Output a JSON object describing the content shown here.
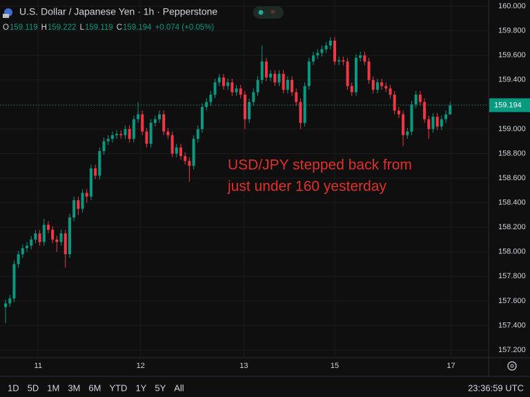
{
  "chart_data": {
    "type": "candlestick",
    "title": "U.S. Dollar / Japanese Yen · 1h · Pepperstone",
    "ohlc_labels": [
      "O",
      "H",
      "L",
      "C"
    ],
    "change_label": "+0.074 (+0.05%)",
    "annotation": [
      "USD/JPY stepped back from",
      "just under 160 yesterday"
    ],
    "ranges": [
      "1D",
      "5D",
      "1M",
      "3M",
      "6M",
      "YTD",
      "1Y",
      "5Y",
      "All"
    ],
    "clock": "23:36:59 UTC",
    "up_color": "#089981",
    "down_color": "#f23645",
    "last_price_line": true,
    "xlim": [
      -1.3,
      113
    ],
    "xticks": [
      {
        "value": 7.62,
        "label": "11"
      },
      {
        "value": 31.6,
        "label": "12"
      },
      {
        "value": 55.75,
        "label": "13"
      },
      {
        "value": 77.0,
        "label": "15"
      },
      {
        "value": 104.2,
        "label": "17"
      }
    ],
    "ylim": [
      157.138,
      160.051
    ],
    "yticks": [
      {
        "value": 157.2,
        "label": "157.200"
      },
      {
        "value": 157.4,
        "label": "157.400"
      },
      {
        "value": 157.6,
        "label": "157.600"
      },
      {
        "value": 157.8,
        "label": "157.800"
      },
      {
        "value": 158.0,
        "label": "158.000"
      },
      {
        "value": 158.2,
        "label": "158.200"
      },
      {
        "value": 158.4,
        "label": "158.400"
      },
      {
        "value": 158.6,
        "label": "158.600"
      },
      {
        "value": 158.8,
        "label": "158.800"
      },
      {
        "value": 159.0,
        "label": "159.000"
      },
      {
        "value": 159.2,
        "label": "159.200"
      },
      {
        "value": 159.4,
        "label": "159.400"
      },
      {
        "value": 159.6,
        "label": "159.600"
      },
      {
        "value": 159.8,
        "label": "159.800"
      },
      {
        "value": 160.0,
        "label": "160.000"
      }
    ],
    "open": [
      157.55,
      157.58,
      157.62,
      157.9,
      157.98,
      158.03,
      158.05,
      158.1,
      158.15,
      158.08,
      158.22,
      158.18,
      158.1,
      158.08,
      158.15,
      157.98,
      158.28,
      158.42,
      158.35,
      158.48,
      158.45,
      158.68,
      158.62,
      158.82,
      158.9,
      158.92,
      158.95,
      158.96,
      158.95,
      159.0,
      158.92,
      159.08,
      159.12,
      158.98,
      158.88,
      159.05,
      159.08,
      159.12,
      158.98,
      158.95,
      158.8,
      158.85,
      158.78,
      158.74,
      158.7,
      158.92,
      159.0,
      159.18,
      159.22,
      159.28,
      159.38,
      159.42,
      159.35,
      159.38,
      159.3,
      159.33,
      159.28,
      159.08,
      159.22,
      159.3,
      159.4,
      159.55,
      159.42,
      159.45,
      159.38,
      159.45,
      159.32,
      159.4,
      159.3,
      159.22,
      159.05,
      159.35,
      159.55,
      159.6,
      159.62,
      159.65,
      159.68,
      159.72,
      159.55,
      159.56,
      159.55,
      159.35,
      159.3,
      159.58,
      159.6,
      159.55,
      159.4,
      159.32,
      159.38,
      159.35,
      159.33,
      159.28,
      159.15,
      159.12,
      158.95,
      158.98,
      159.2,
      159.28,
      159.22,
      159.08,
      159.0,
      159.1,
      159.02,
      159.08,
      159.119
    ],
    "high": [
      157.61,
      157.65,
      157.93,
      158.01,
      158.06,
      158.08,
      158.13,
      158.18,
      158.18,
      158.27,
      158.25,
      158.21,
      158.13,
      158.18,
      158.18,
      158.31,
      158.45,
      158.45,
      158.51,
      158.51,
      158.71,
      158.71,
      158.85,
      158.93,
      158.95,
      158.98,
      158.99,
      158.99,
      159.03,
      159.03,
      159.11,
      159.22,
      159.15,
      159.01,
      159.08,
      159.11,
      159.15,
      159.15,
      159.01,
      158.98,
      158.88,
      158.88,
      158.81,
      158.77,
      158.95,
      159.03,
      159.21,
      159.25,
      159.31,
      159.41,
      159.45,
      159.45,
      159.41,
      159.41,
      159.36,
      159.36,
      159.31,
      159.25,
      159.33,
      159.43,
      159.68,
      159.58,
      159.48,
      159.48,
      159.48,
      159.48,
      159.43,
      159.43,
      159.33,
      159.25,
      159.38,
      159.58,
      159.63,
      159.65,
      159.68,
      159.71,
      159.75,
      159.75,
      159.59,
      159.59,
      159.58,
      159.38,
      159.61,
      159.63,
      159.63,
      159.58,
      159.43,
      159.41,
      159.41,
      159.38,
      159.36,
      159.31,
      159.18,
      159.15,
      159.01,
      159.23,
      159.31,
      159.31,
      159.25,
      159.11,
      159.13,
      159.13,
      159.11,
      159.15,
      159.222
    ],
    "low": [
      157.42,
      157.55,
      157.59,
      157.87,
      157.95,
      158.0,
      158.02,
      158.07,
      158.05,
      158.05,
      158.15,
      158.07,
      158.0,
      158.05,
      157.87,
      157.95,
      158.25,
      158.3,
      158.32,
      158.4,
      158.42,
      158.59,
      158.59,
      158.79,
      158.87,
      158.89,
      158.92,
      158.92,
      158.92,
      158.89,
      158.89,
      159.05,
      158.95,
      158.85,
      158.85,
      159.02,
      159.05,
      158.95,
      158.92,
      158.77,
      158.77,
      158.75,
      158.71,
      158.57,
      158.67,
      158.89,
      158.97,
      159.15,
      159.19,
      159.25,
      159.35,
      159.32,
      159.32,
      159.27,
      159.27,
      159.25,
      159.0,
      159.05,
      159.19,
      159.27,
      159.37,
      159.39,
      159.39,
      159.35,
      159.35,
      159.29,
      159.29,
      159.27,
      159.19,
      159.0,
      159.02,
      159.32,
      159.52,
      159.57,
      159.59,
      159.62,
      159.65,
      159.52,
      159.52,
      159.52,
      159.32,
      159.27,
      159.27,
      159.55,
      159.52,
      159.37,
      159.29,
      159.29,
      159.32,
      159.3,
      159.25,
      159.12,
      159.09,
      158.86,
      158.92,
      158.95,
      159.17,
      159.19,
      159.05,
      158.92,
      158.97,
      158.99,
      158.99,
      159.05,
      159.119
    ],
    "close": [
      157.58,
      157.62,
      157.9,
      157.98,
      158.03,
      158.05,
      158.1,
      158.15,
      158.08,
      158.22,
      158.18,
      158.1,
      158.08,
      158.15,
      157.98,
      158.28,
      158.42,
      158.35,
      158.48,
      158.45,
      158.68,
      158.62,
      158.82,
      158.9,
      158.92,
      158.95,
      158.96,
      158.95,
      159.0,
      158.92,
      159.08,
      159.12,
      158.98,
      158.88,
      159.05,
      159.08,
      159.12,
      158.98,
      158.95,
      158.8,
      158.85,
      158.78,
      158.74,
      158.7,
      158.92,
      159.0,
      159.18,
      159.22,
      159.28,
      159.38,
      159.42,
      159.35,
      159.38,
      159.3,
      159.33,
      159.28,
      159.08,
      159.22,
      159.3,
      159.4,
      159.55,
      159.42,
      159.45,
      159.38,
      159.45,
      159.32,
      159.4,
      159.3,
      159.22,
      159.05,
      159.35,
      159.55,
      159.6,
      159.62,
      159.65,
      159.68,
      159.72,
      159.55,
      159.56,
      159.55,
      159.35,
      159.3,
      159.58,
      159.6,
      159.55,
      159.4,
      159.32,
      159.38,
      159.35,
      159.33,
      159.28,
      159.15,
      159.12,
      158.95,
      158.98,
      159.2,
      159.28,
      159.22,
      159.08,
      159.0,
      159.1,
      159.02,
      159.08,
      159.119,
      159.194
    ]
  }
}
